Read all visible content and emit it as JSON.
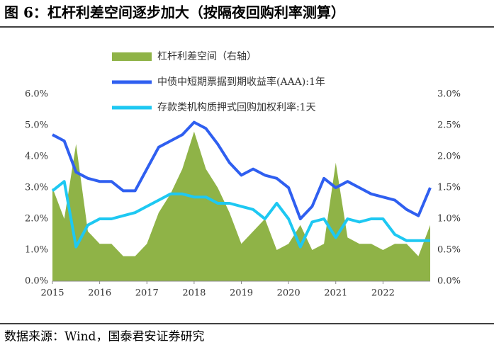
{
  "title": "图 6：杠杆利差空间逐步加大（按隔夜回购利率测算）",
  "source": "数据来源：Wind，国泰君安证券研究",
  "chart_data": {
    "type": "line",
    "x": [
      2015.0,
      2015.25,
      2015.5,
      2015.75,
      2016.0,
      2016.25,
      2016.5,
      2016.75,
      2017.0,
      2017.25,
      2017.5,
      2017.75,
      2018.0,
      2018.25,
      2018.5,
      2018.75,
      2019.0,
      2019.25,
      2019.5,
      2019.75,
      2020.0,
      2020.25,
      2020.5,
      2020.75,
      2021.0,
      2021.25,
      2021.5,
      2021.75,
      2022.0,
      2022.25,
      2022.5,
      2022.75,
      2023.0
    ],
    "series": [
      {
        "name": "杠杆利差空间（右轴）",
        "kind": "area",
        "axis": "y2",
        "color": "#8fb347",
        "values": [
          1.5,
          1.0,
          2.2,
          0.8,
          0.6,
          0.6,
          0.4,
          0.4,
          0.6,
          1.1,
          1.4,
          1.8,
          2.4,
          1.8,
          1.5,
          1.1,
          0.6,
          0.8,
          1.0,
          0.5,
          0.6,
          0.9,
          0.5,
          0.6,
          1.9,
          0.7,
          0.6,
          0.6,
          0.5,
          0.6,
          0.6,
          0.4,
          0.9
        ]
      },
      {
        "name": "中债中短期票据到期收益率(AAA):1年",
        "kind": "line",
        "color": "#2f5ff0",
        "values": [
          4.7,
          4.5,
          3.5,
          3.3,
          3.2,
          3.2,
          2.9,
          2.9,
          3.6,
          4.3,
          4.5,
          4.7,
          5.1,
          4.9,
          4.4,
          3.8,
          3.4,
          3.6,
          3.4,
          3.3,
          3.0,
          2.0,
          2.4,
          3.3,
          3.0,
          3.2,
          3.0,
          2.8,
          2.7,
          2.6,
          2.3,
          2.1,
          3.0
        ]
      },
      {
        "name": "存款类机构质押式回购加权利率:1天",
        "kind": "line",
        "color": "#1ec8f2",
        "values": [
          2.9,
          3.2,
          1.1,
          1.8,
          2.0,
          2.0,
          2.1,
          2.2,
          2.4,
          2.6,
          2.8,
          2.8,
          2.7,
          2.7,
          2.5,
          2.5,
          2.4,
          2.3,
          2.0,
          2.5,
          2.0,
          1.1,
          1.9,
          2.0,
          1.4,
          2.0,
          1.9,
          2.0,
          2.0,
          1.5,
          1.3,
          1.3,
          1.3
        ]
      }
    ],
    "xlim": [
      2015,
      2023
    ],
    "xticks": [
      2015,
      2016,
      2017,
      2018,
      2019,
      2020,
      2021,
      2022
    ],
    "ylim": [
      0,
      6
    ],
    "yticks": [
      {
        "value": 0,
        "label": "0.0%"
      },
      {
        "value": 1,
        "label": "1.0%"
      },
      {
        "value": 2,
        "label": "2.0%"
      },
      {
        "value": 3,
        "label": "3.0%"
      },
      {
        "value": 4,
        "label": "4.0%"
      },
      {
        "value": 5,
        "label": "5.0%"
      },
      {
        "value": 6,
        "label": "6.0%"
      }
    ],
    "y2lim": [
      0,
      3
    ],
    "y2ticks": [
      {
        "value": 0,
        "label": "0.0%"
      },
      {
        "value": 0.5,
        "label": "0.5%"
      },
      {
        "value": 1,
        "label": "1.0%"
      },
      {
        "value": 1.5,
        "label": "1.5%"
      },
      {
        "value": 2,
        "label": "2.0%"
      },
      {
        "value": 2.5,
        "label": "2.5%"
      },
      {
        "value": 3,
        "label": "3.0%"
      }
    ]
  }
}
